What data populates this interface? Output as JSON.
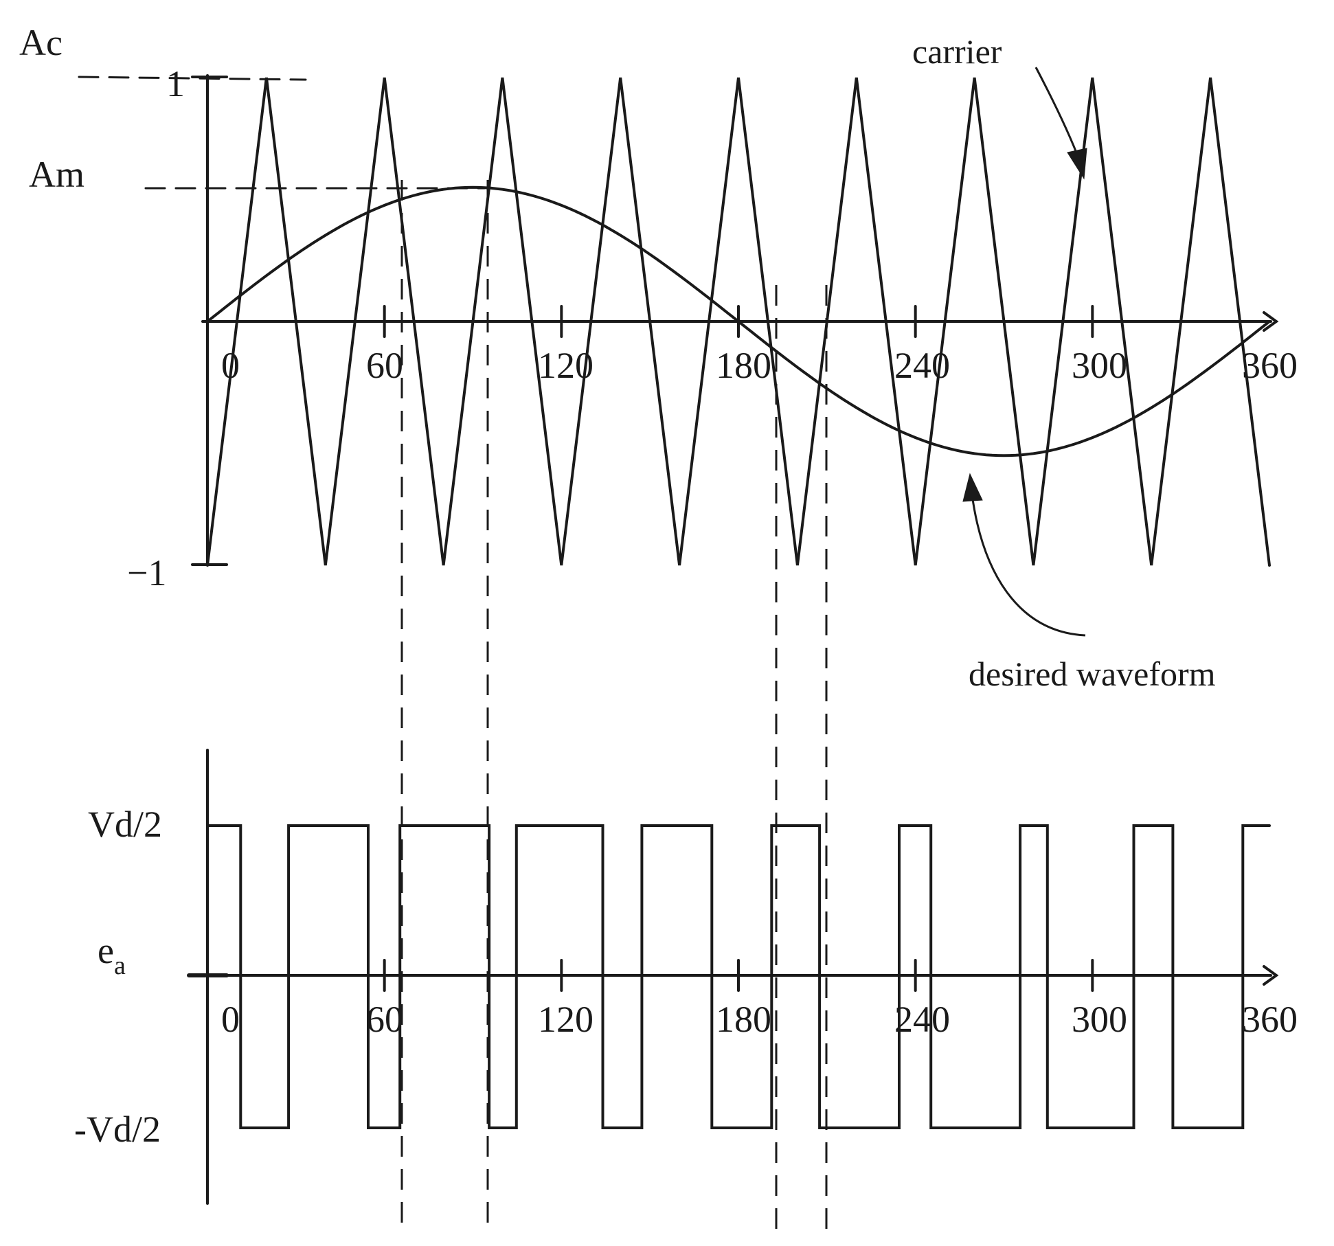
{
  "diagram": {
    "top_plot": {
      "axis_labels": {
        "ac": "Ac",
        "am": "Am",
        "one": "1",
        "neg_one": "−1"
      },
      "x_ticks": [
        "0",
        "60",
        "120",
        "180",
        "240",
        "300",
        "360"
      ],
      "carrier_label": "carrier",
      "waveform_label": "desired waveform"
    },
    "bottom_plot": {
      "y_labels": {
        "high": "Vd/2",
        "mid_base": "e",
        "mid_sub": "a",
        "low": "-Vd/2"
      },
      "x_ticks": [
        "0",
        "60",
        "120",
        "180",
        "240",
        "300",
        "360"
      ]
    },
    "colors": {
      "line": "#1a1a1a",
      "background": "#ffffff"
    },
    "signal": {
      "carrier_min": -1,
      "carrier_max": 1,
      "modulation_amplitude": 0.55,
      "carrier_cycles": 9,
      "phase_range_deg": [
        0,
        360
      ]
    }
  }
}
